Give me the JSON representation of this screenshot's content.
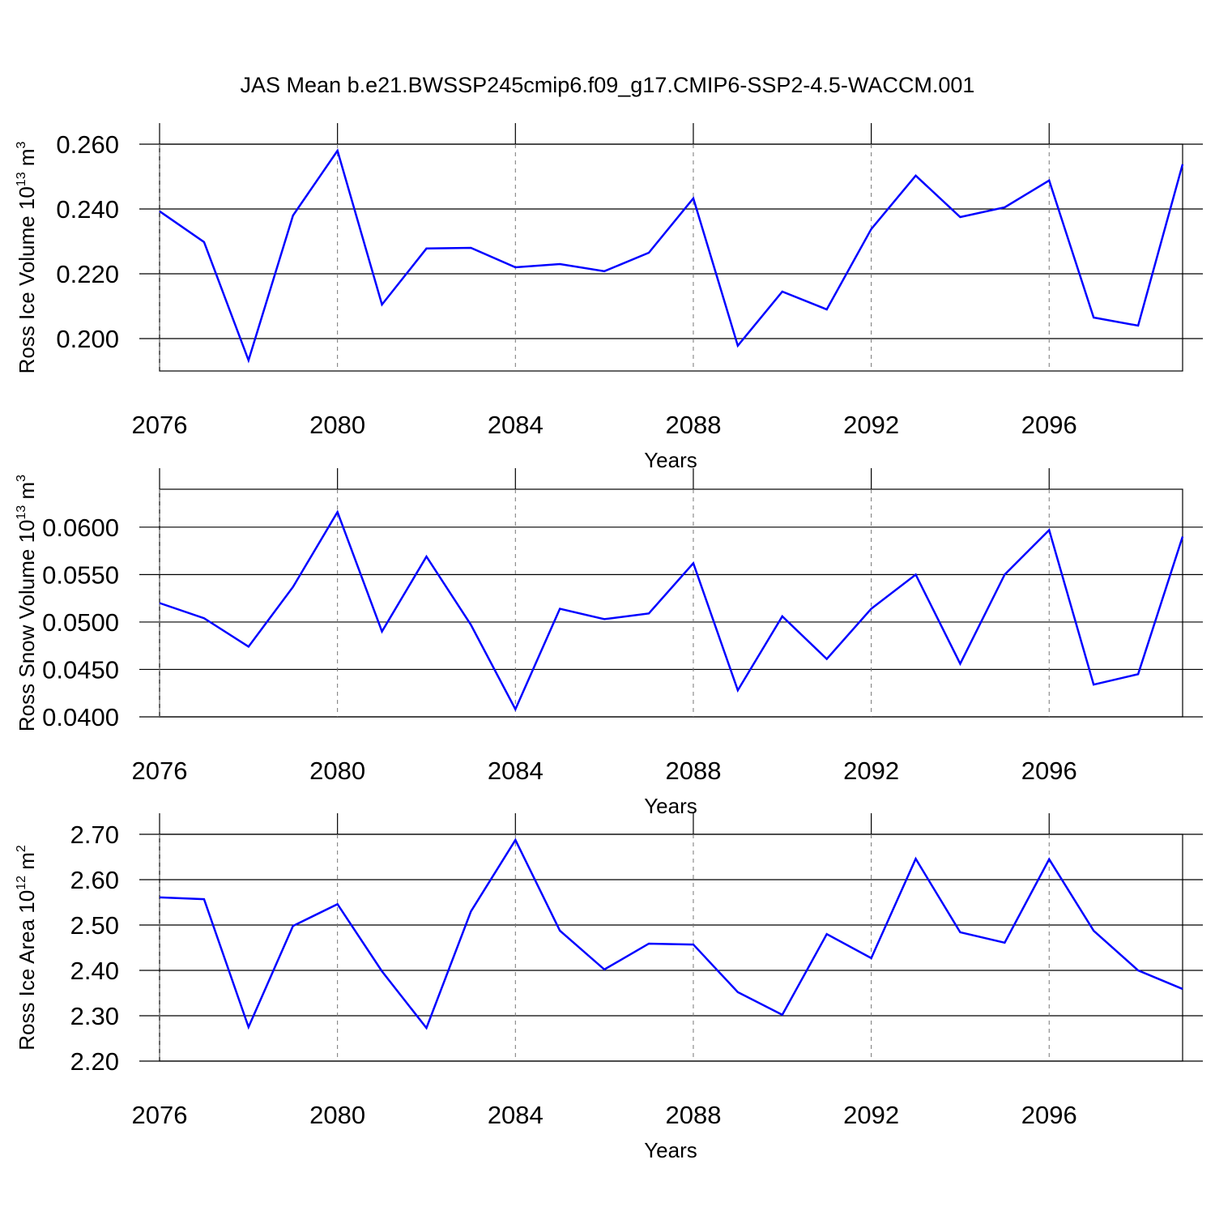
{
  "chart_data": [
    {
      "type": "line",
      "title": "JAS Mean b.e21.BWSSP245cmip6.f09_g17.CMIP6-SSP2-4.5-WACCM.001",
      "xlabel": "Years",
      "ylabel": [
        "Ross Ice Volume 10",
        "13",
        " m",
        "3"
      ],
      "x": [
        2076,
        2077,
        2078,
        2079,
        2080,
        2081,
        2082,
        2083,
        2084,
        2085,
        2086,
        2087,
        2088,
        2089,
        2090,
        2091,
        2092,
        2093,
        2094,
        2095,
        2096,
        2097,
        2098,
        2099
      ],
      "series": [
        {
          "color": "#0000ff",
          "values": [
            0.2393,
            0.2298,
            0.1933,
            0.238,
            0.258,
            0.2105,
            0.2278,
            0.228,
            0.222,
            0.223,
            0.2208,
            0.2265,
            0.2433,
            0.1978,
            0.2145,
            0.209,
            0.2338,
            0.2503,
            0.2375,
            0.2405,
            0.2488,
            0.2065,
            0.204,
            0.2538
          ]
        }
      ],
      "xlim": [
        2076,
        2099
      ],
      "xticks": [
        2076,
        2080,
        2084,
        2088,
        2092,
        2096
      ],
      "ylim": [
        0.19,
        0.26
      ],
      "yticks": [
        {
          "value": 0.2,
          "label": "0.200"
        },
        {
          "value": 0.22,
          "label": "0.220"
        },
        {
          "value": 0.24,
          "label": "0.240"
        },
        {
          "value": 0.26,
          "label": "0.260"
        }
      ],
      "grid": true
    },
    {
      "type": "line",
      "xlabel": "Years",
      "ylabel": [
        "Ross Snow Volume 10",
        "13",
        " m",
        "3"
      ],
      "x": [
        2076,
        2077,
        2078,
        2079,
        2080,
        2081,
        2082,
        2083,
        2084,
        2085,
        2086,
        2087,
        2088,
        2089,
        2090,
        2091,
        2092,
        2093,
        2094,
        2095,
        2096,
        2097,
        2098,
        2099
      ],
      "series": [
        {
          "color": "#0000ff",
          "values": [
            0.052,
            0.0504,
            0.0474,
            0.0537,
            0.0616,
            0.049,
            0.0569,
            0.0497,
            0.0408,
            0.0514,
            0.0503,
            0.0509,
            0.0562,
            0.0428,
            0.0506,
            0.0461,
            0.0514,
            0.055,
            0.0456,
            0.055,
            0.0597,
            0.0434,
            0.0445,
            0.059
          ]
        }
      ],
      "xlim": [
        2076,
        2099
      ],
      "xticks": [
        2076,
        2080,
        2084,
        2088,
        2092,
        2096
      ],
      "ylim": [
        0.04,
        0.064
      ],
      "yticks": [
        {
          "value": 0.04,
          "label": "0.0400"
        },
        {
          "value": 0.045,
          "label": "0.0450"
        },
        {
          "value": 0.05,
          "label": "0.0500"
        },
        {
          "value": 0.055,
          "label": "0.0550"
        },
        {
          "value": 0.06,
          "label": "0.0600"
        }
      ],
      "grid": true
    },
    {
      "type": "line",
      "xlabel": "Years",
      "ylabel": [
        "Ross Ice Area 10",
        "12",
        " m",
        "2"
      ],
      "x": [
        2076,
        2077,
        2078,
        2079,
        2080,
        2081,
        2082,
        2083,
        2084,
        2085,
        2086,
        2087,
        2088,
        2089,
        2090,
        2091,
        2092,
        2093,
        2094,
        2095,
        2096,
        2097,
        2098,
        2099
      ],
      "series": [
        {
          "color": "#0000ff",
          "values": [
            2.561,
            2.557,
            2.275,
            2.498,
            2.546,
            2.398,
            2.273,
            2.53,
            2.6875,
            2.4875,
            2.402,
            2.459,
            2.457,
            2.352,
            2.302,
            2.48,
            2.427,
            2.646,
            2.484,
            2.461,
            2.645,
            2.4875,
            2.4,
            2.359
          ]
        }
      ],
      "xlim": [
        2076,
        2099
      ],
      "xticks": [
        2076,
        2080,
        2084,
        2088,
        2092,
        2096
      ],
      "ylim": [
        2.2,
        2.7
      ],
      "yticks": [
        {
          "value": 2.2,
          "label": "2.20"
        },
        {
          "value": 2.3,
          "label": "2.30"
        },
        {
          "value": 2.4,
          "label": "2.40"
        },
        {
          "value": 2.5,
          "label": "2.50"
        },
        {
          "value": 2.6,
          "label": "2.60"
        },
        {
          "value": 2.7,
          "label": "2.70"
        }
      ],
      "grid": true
    }
  ]
}
